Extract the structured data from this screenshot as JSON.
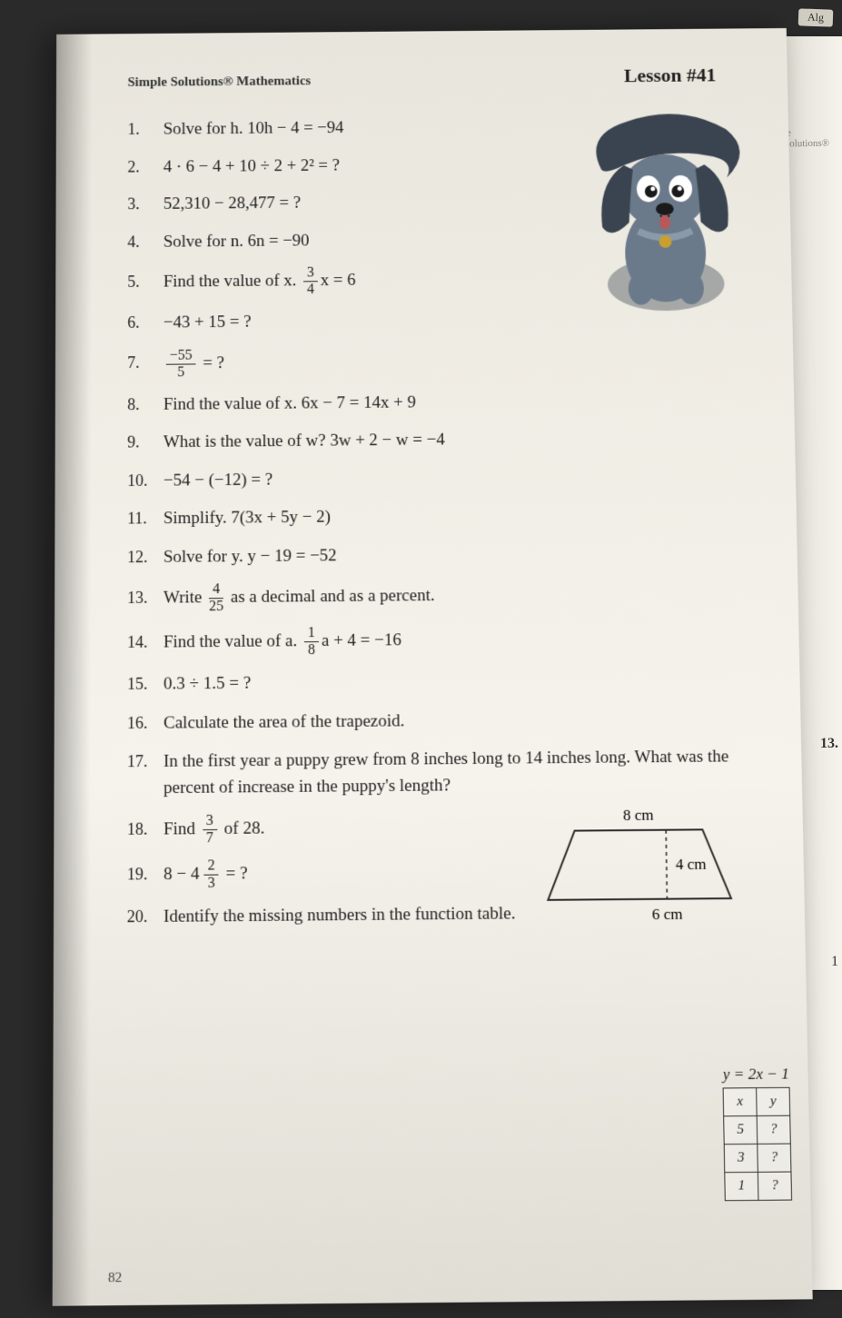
{
  "brand": "Simple Solutions® Mathematics",
  "lesson_label": "Lesson #41",
  "tab_label": "Alg",
  "side_brand": "le Solutions®",
  "problems": [
    {
      "n": "1.",
      "text": "Solve for h.   10h − 4 = −94"
    },
    {
      "n": "2.",
      "text": "4 · 6 − 4 + 10 ÷ 2 + 2² = ?"
    },
    {
      "n": "3.",
      "text": "52,310 − 28,477 = ?"
    },
    {
      "n": "4.",
      "text": "Solve for n.   6n = −90"
    },
    {
      "n": "5.",
      "text": "Find the value of x.   ",
      "frac": {
        "n": "3",
        "d": "4"
      },
      "after": "x = 6"
    },
    {
      "n": "6.",
      "text": "−43 + 15 = ?"
    },
    {
      "n": "7.",
      "fracOnly": {
        "n": "−55",
        "d": "5"
      },
      "after": " = ?"
    },
    {
      "n": "8.",
      "text": "Find the value of x.   6x − 7 = 14x + 9"
    },
    {
      "n": "9.",
      "text": "What is the value of w?   3w + 2 − w = −4"
    },
    {
      "n": "10.",
      "text": "−54 − (−12) = ?"
    },
    {
      "n": "11.",
      "text": "Simplify.   7(3x + 5y − 2)"
    },
    {
      "n": "12.",
      "text": "Solve for y.   y − 19 = −52"
    },
    {
      "n": "13.",
      "text": "Write ",
      "frac": {
        "n": "4",
        "d": "25"
      },
      "after": " as a decimal and as a percent."
    },
    {
      "n": "14.",
      "text": "Find the value of a.   ",
      "frac": {
        "n": "1",
        "d": "8"
      },
      "after": "a + 4 = −16"
    },
    {
      "n": "15.",
      "text": "0.3 ÷ 1.5 = ?"
    },
    {
      "n": "16.",
      "text": "Calculate the area of the trapezoid."
    },
    {
      "n": "17.",
      "text": "In the first year a puppy grew from 8 inches long to 14 inches long. What was the percent of increase in the puppy's length?"
    },
    {
      "n": "18.",
      "text": "Find ",
      "frac": {
        "n": "3",
        "d": "7"
      },
      "after": " of 28."
    },
    {
      "n": "19.",
      "text": "8 − ",
      "mixed": {
        "w": "4",
        "n": "2",
        "d": "3"
      },
      "after": " = ?"
    },
    {
      "n": "20.",
      "text": "Identify the missing numbers in the function table."
    }
  ],
  "trapezoid": {
    "top_label": "8 cm",
    "height_label": "4 cm",
    "bottom_label": "6 cm",
    "stroke": "#2a2a2a",
    "dash": "4,4"
  },
  "function_table": {
    "equation": "y = 2x − 1",
    "header": [
      "x",
      "y"
    ],
    "rows": [
      [
        "5",
        "?"
      ],
      [
        "3",
        "?"
      ],
      [
        "1",
        "?"
      ]
    ]
  },
  "side_labels": {
    "q13": "13.",
    "q17": "1"
  },
  "page_number": "82",
  "mascot": {
    "body_color": "#6b7a8a",
    "dark_color": "#3a4450",
    "eye_outer": "#ffffff",
    "eye_pupil": "#1a1a1a",
    "collar": "#8a9aa8",
    "tag": "#c9a030",
    "tongue": "#b85858"
  }
}
